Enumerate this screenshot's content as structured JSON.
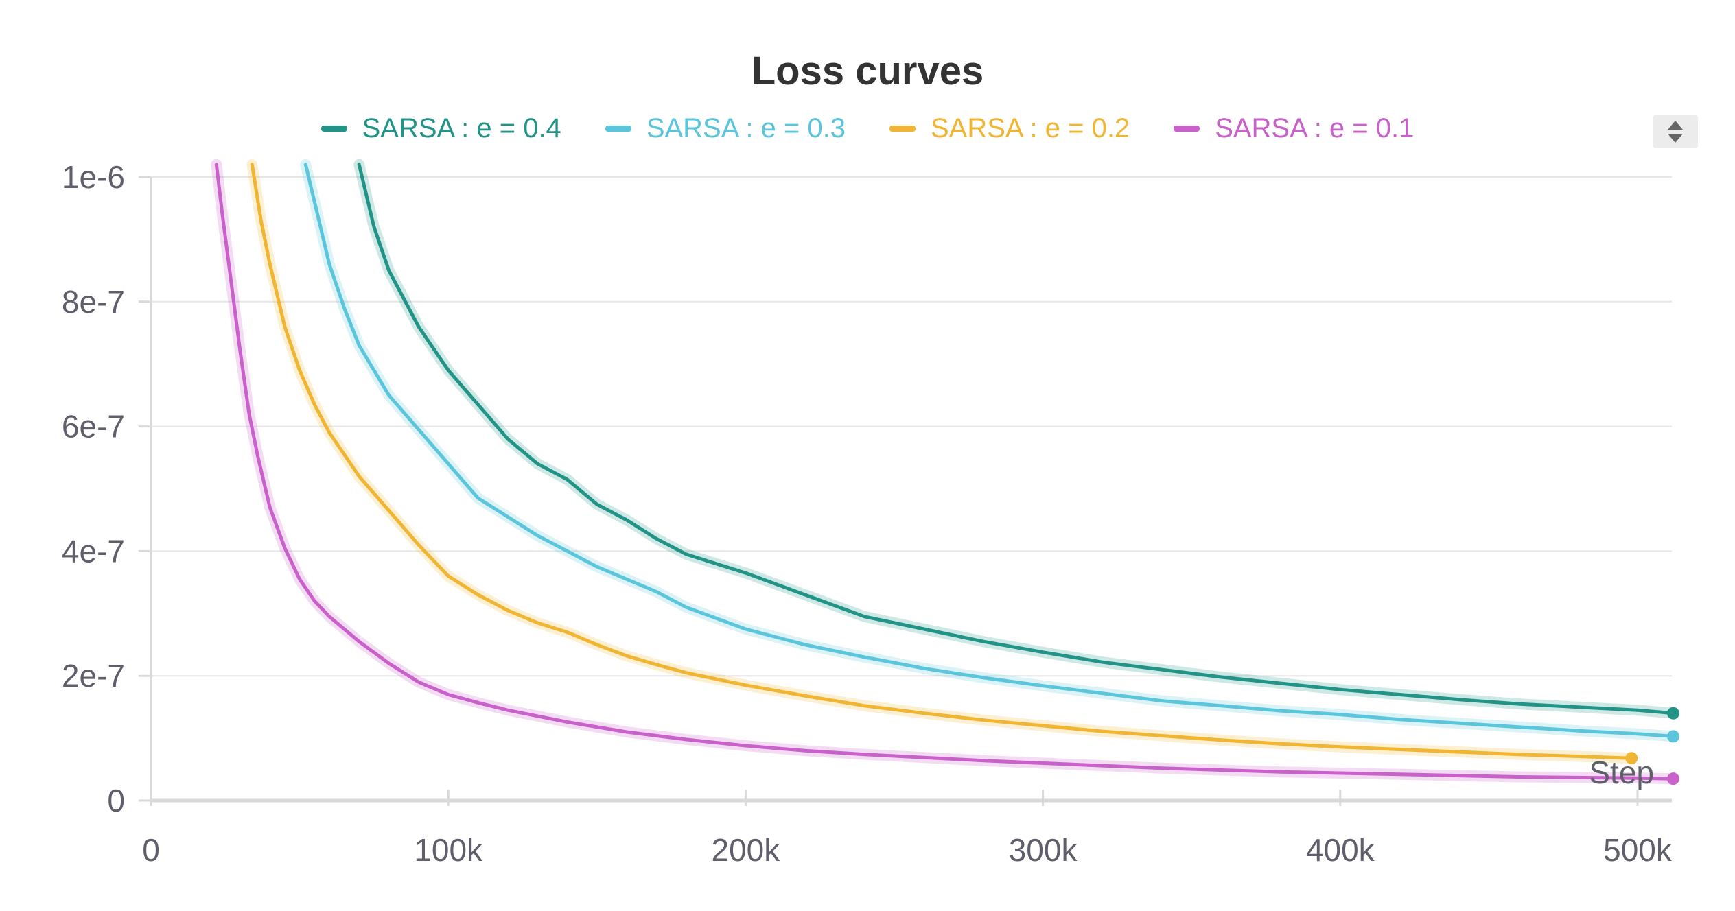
{
  "chart_data": {
    "type": "line",
    "title": "Loss curves",
    "xlabel": "Step",
    "ylabel": "",
    "xlim": [
      0,
      512000
    ],
    "ylim": [
      0,
      1e-06
    ],
    "x_ticks": [
      {
        "value": 0,
        "label": "0"
      },
      {
        "value": 100000,
        "label": "100k"
      },
      {
        "value": 200000,
        "label": "200k"
      },
      {
        "value": 300000,
        "label": "300k"
      },
      {
        "value": 400000,
        "label": "400k"
      },
      {
        "value": 500000,
        "label": "500k"
      }
    ],
    "y_ticks": [
      {
        "value": 0,
        "label": "0"
      },
      {
        "value": 2e-07,
        "label": "2e-7"
      },
      {
        "value": 4e-07,
        "label": "4e-7"
      },
      {
        "value": 6e-07,
        "label": "6e-7"
      },
      {
        "value": 8e-07,
        "label": "8e-7"
      },
      {
        "value": 1e-06,
        "label": "1e-6"
      }
    ],
    "grid": true,
    "legend_position": "top",
    "series": [
      {
        "name": "SARSA : e = 0.4",
        "color": "#229487",
        "x": [
          70000,
          75000,
          80000,
          90000,
          100000,
          110000,
          120000,
          130000,
          140000,
          150000,
          160000,
          170000,
          180000,
          190000,
          200000,
          220000,
          240000,
          260000,
          280000,
          300000,
          320000,
          340000,
          360000,
          380000,
          400000,
          420000,
          440000,
          460000,
          480000,
          500000,
          512000
        ],
        "y": [
          1.02e-06,
          9.2e-07,
          8.5e-07,
          7.6e-07,
          6.9e-07,
          6.35e-07,
          5.8e-07,
          5.4e-07,
          5.15e-07,
          4.75e-07,
          4.5e-07,
          4.2e-07,
          3.95e-07,
          3.8e-07,
          3.65e-07,
          3.3e-07,
          2.95e-07,
          2.75e-07,
          2.55e-07,
          2.38e-07,
          2.22e-07,
          2.1e-07,
          1.98e-07,
          1.88e-07,
          1.78e-07,
          1.7e-07,
          1.62e-07,
          1.55e-07,
          1.5e-07,
          1.45e-07,
          1.4e-07
        ]
      },
      {
        "name": "SARSA : e = 0.3",
        "color": "#5bc5db",
        "x": [
          52000,
          55000,
          60000,
          65000,
          70000,
          80000,
          90000,
          100000,
          110000,
          120000,
          130000,
          140000,
          150000,
          160000,
          170000,
          180000,
          200000,
          220000,
          240000,
          260000,
          280000,
          300000,
          320000,
          340000,
          360000,
          380000,
          400000,
          420000,
          440000,
          460000,
          480000,
          500000,
          512000
        ],
        "y": [
          1.02e-06,
          9.6e-07,
          8.6e-07,
          7.9e-07,
          7.3e-07,
          6.5e-07,
          5.95e-07,
          5.4e-07,
          4.85e-07,
          4.55e-07,
          4.25e-07,
          4e-07,
          3.75e-07,
          3.55e-07,
          3.35e-07,
          3.1e-07,
          2.75e-07,
          2.5e-07,
          2.3e-07,
          2.12e-07,
          1.97e-07,
          1.84e-07,
          1.72e-07,
          1.6e-07,
          1.52e-07,
          1.44e-07,
          1.38e-07,
          1.3e-07,
          1.24e-07,
          1.18e-07,
          1.12e-07,
          1.07e-07,
          1.03e-07
        ]
      },
      {
        "name": "SARSA : e = 0.2",
        "color": "#f0b533",
        "x": [
          34000,
          37000,
          40000,
          45000,
          50000,
          55000,
          60000,
          70000,
          80000,
          90000,
          100000,
          110000,
          120000,
          130000,
          140000,
          150000,
          160000,
          170000,
          180000,
          200000,
          220000,
          240000,
          260000,
          280000,
          300000,
          320000,
          340000,
          360000,
          380000,
          400000,
          420000,
          440000,
          460000,
          480000,
          498000
        ],
        "y": [
          1.02e-06,
          9.3e-07,
          8.6e-07,
          7.6e-07,
          6.9e-07,
          6.35e-07,
          5.9e-07,
          5.2e-07,
          4.65e-07,
          4.1e-07,
          3.6e-07,
          3.3e-07,
          3.05e-07,
          2.85e-07,
          2.7e-07,
          2.5e-07,
          2.32e-07,
          2.18e-07,
          2.05e-07,
          1.85e-07,
          1.68e-07,
          1.52e-07,
          1.4e-07,
          1.29e-07,
          1.2e-07,
          1.11e-07,
          1.04e-07,
          9.7e-08,
          9.1e-08,
          8.6e-08,
          8.2e-08,
          7.8e-08,
          7.4e-08,
          7.1e-08,
          6.8e-08
        ]
      },
      {
        "name": "SARSA : e = 0.1",
        "color": "#c861c9",
        "x": [
          22000,
          24000,
          27000,
          30000,
          33000,
          36000,
          40000,
          45000,
          50000,
          55000,
          60000,
          70000,
          80000,
          90000,
          100000,
          110000,
          120000,
          140000,
          160000,
          180000,
          200000,
          220000,
          240000,
          260000,
          280000,
          300000,
          320000,
          340000,
          360000,
          380000,
          400000,
          420000,
          440000,
          460000,
          480000,
          500000,
          512000
        ],
        "y": [
          1.02e-06,
          9.4e-07,
          8.3e-07,
          7.2e-07,
          6.2e-07,
          5.5e-07,
          4.7e-07,
          4.05e-07,
          3.55e-07,
          3.2e-07,
          2.95e-07,
          2.55e-07,
          2.2e-07,
          1.9e-07,
          1.7e-07,
          1.57e-07,
          1.45e-07,
          1.26e-07,
          1.1e-07,
          9.8e-08,
          8.8e-08,
          8e-08,
          7.4e-08,
          6.9e-08,
          6.4e-08,
          6e-08,
          5.6e-08,
          5.2e-08,
          4.9e-08,
          4.6e-08,
          4.4e-08,
          4.2e-08,
          4e-08,
          3.8e-08,
          3.7e-08,
          3.6e-08,
          3.5e-08
        ]
      }
    ]
  },
  "controls": {
    "legend_scroll_icon": "up-down-arrows"
  }
}
